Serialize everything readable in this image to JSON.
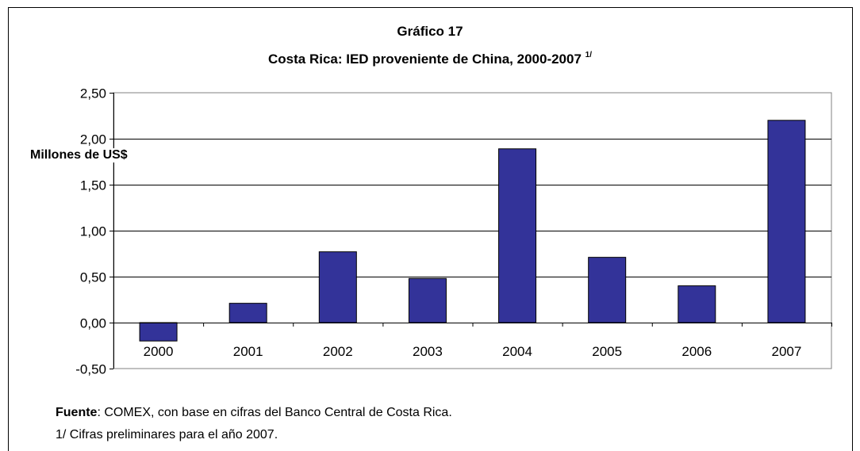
{
  "chart_data": {
    "type": "bar",
    "title": "Gráfico 17",
    "subtitle": "Costa Rica: IED proveniente de China, 2000-2007",
    "subtitle_sup": "1/",
    "ylabel": "Millones de US$",
    "categories": [
      "2000",
      "2001",
      "2002",
      "2003",
      "2004",
      "2005",
      "2006",
      "2007"
    ],
    "values": [
      -0.2,
      0.21,
      0.77,
      0.48,
      1.89,
      0.71,
      0.4,
      2.2
    ],
    "ylim": [
      -0.5,
      2.5
    ],
    "yticks": [
      "2,50",
      "2,00",
      "1,50",
      "1,00",
      "0,50",
      "0,00",
      "-0,50"
    ],
    "grid": true,
    "bar_color": "#333399"
  },
  "footer": {
    "source_label": "Fuente",
    "source_text": ": COMEX, con base en cifras del Banco Central de Costa Rica.",
    "note": "1/ Cifras preliminares para el año 2007."
  }
}
